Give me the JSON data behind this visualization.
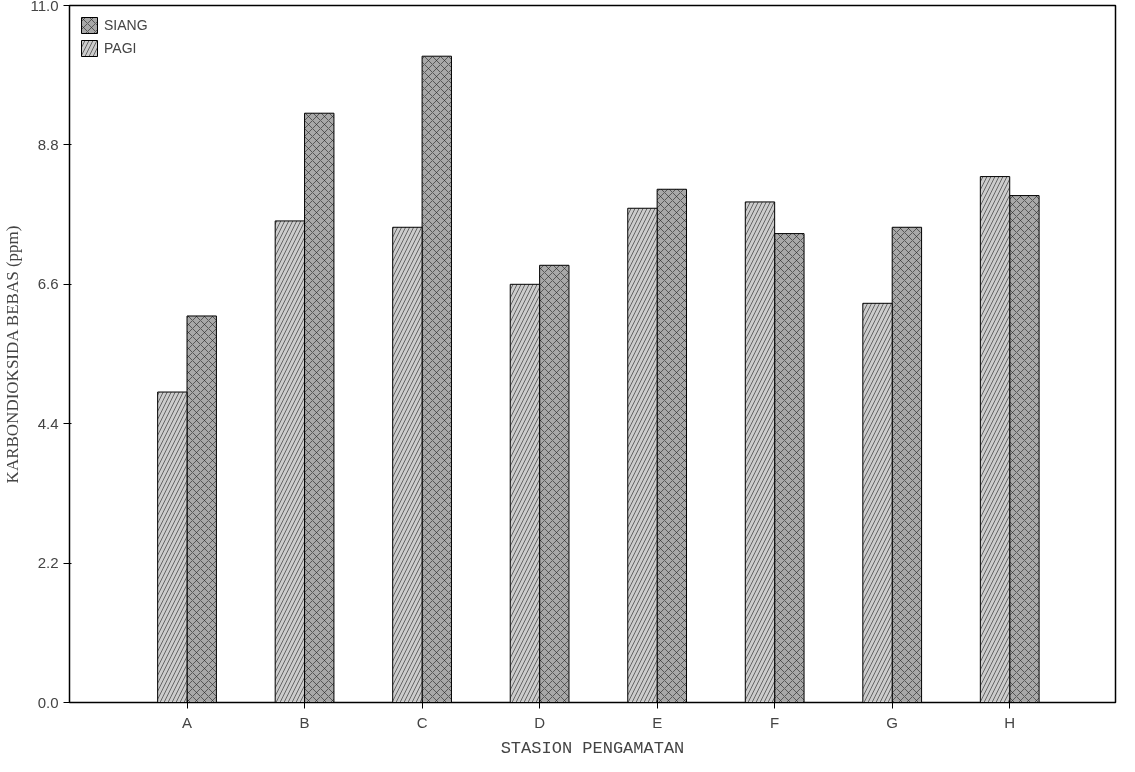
{
  "chart_data": {
    "type": "bar",
    "xlabel": "STASION PENGAMATAN",
    "ylabel": "KARBONDIOKSIDA BEBAS (ppm)",
    "categories": [
      "A",
      "B",
      "C",
      "D",
      "E",
      "F",
      "G",
      "H"
    ],
    "series": [
      {
        "name": "SIANG",
        "color": "#a8a8a8",
        "values": [
          6.1,
          9.3,
          10.2,
          6.9,
          8.1,
          7.4,
          7.5,
          8.0
        ]
      },
      {
        "name": "PAGI",
        "color": "#cccccc",
        "values": [
          4.9,
          7.6,
          7.5,
          6.6,
          7.8,
          7.9,
          6.3,
          8.3
        ]
      }
    ],
    "ylim": [
      0,
      11
    ],
    "yticks": [
      {
        "value": 0,
        "label": "0.0"
      },
      2.2,
      4.4,
      6.6,
      8.8,
      {
        "value": 11,
        "label": "11.0"
      }
    ],
    "grid": false,
    "legend": "top left"
  }
}
